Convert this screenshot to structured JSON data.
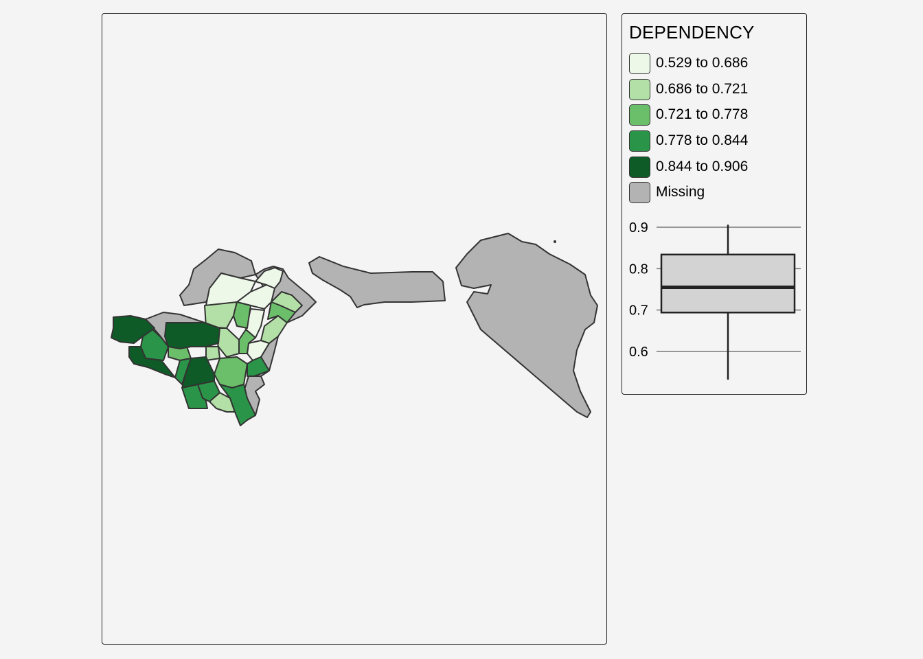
{
  "legend": {
    "title": "DEPENDENCY",
    "items": [
      {
        "label": "0.529 to 0.686",
        "color": "#edf8e9"
      },
      {
        "label": "0.686 to 0.721",
        "color": "#b3e0a6"
      },
      {
        "label": "0.721 to 0.778",
        "color": "#6cbf6a"
      },
      {
        "label": "0.778 to 0.844",
        "color": "#2a9548"
      },
      {
        "label": "0.844 to 0.906",
        "color": "#0e5b28"
      },
      {
        "label": "Missing",
        "color": "#b3b3b3"
      }
    ]
  },
  "chart_data": {
    "type": "box",
    "ylim": [
      0.529,
      0.906
    ],
    "yticks": [
      0.6,
      0.7,
      0.8,
      0.9
    ],
    "ytick_labels": [
      "0.6",
      "0.7",
      "0.8",
      "0.9"
    ],
    "box": {
      "min": 0.532,
      "q1": 0.694,
      "median": 0.755,
      "q3": 0.834,
      "max": 0.906
    },
    "grid": true
  },
  "colors": {
    "background": "#f4f4f4",
    "outline": "#333333",
    "missing": "#b3b3b3",
    "box_fill": "#d3d3d3"
  }
}
